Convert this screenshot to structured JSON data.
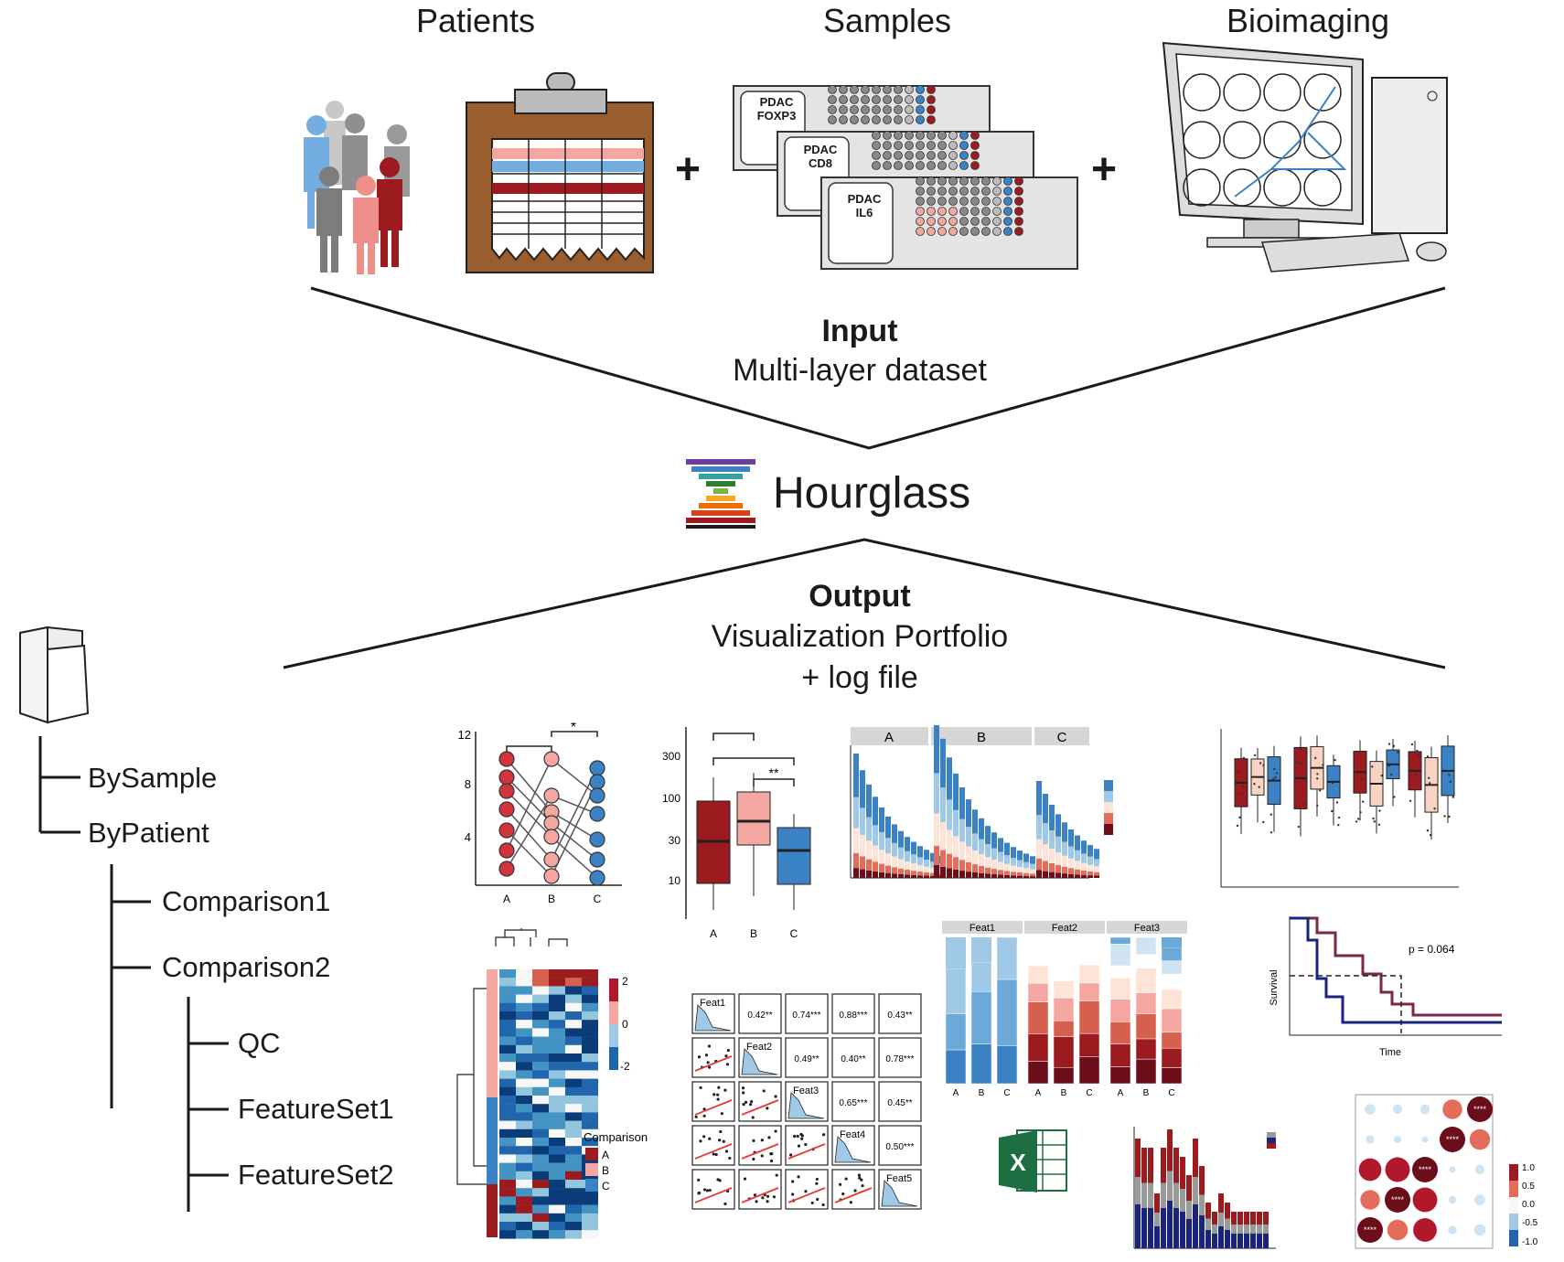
{
  "inputs": {
    "patients_label": "Patients",
    "samples_label": "Samples",
    "bioimaging_label": "Bioimaging",
    "plus": "+"
  },
  "slides": [
    {
      "line1": "PDAC",
      "line2": "FOXP3"
    },
    {
      "line1": "PDAC",
      "line2": "CD8"
    },
    {
      "line1": "PDAC",
      "line2": "IL6"
    }
  ],
  "input_block": {
    "title": "Input",
    "subtitle": "Multi-layer dataset"
  },
  "tool": {
    "name": "Hourglass"
  },
  "output_block": {
    "title": "Output",
    "line1": "Visualization Portfolio",
    "line2": "+ log file"
  },
  "tree": {
    "bysample": "BySample",
    "bypatient": "ByPatient",
    "comparison1": "Comparison1",
    "comparison2": "Comparison2",
    "qc": "QC",
    "featureset1": "FeatureSet1",
    "featureset2": "FeatureSet2"
  },
  "colors": {
    "dark_red": "#9b1b1e",
    "pink": "#f4a6a0",
    "blue": "#3a82c4",
    "light_blue": "#9fc9e6",
    "grey": "#9a9a9a",
    "navy": "#1a237e"
  },
  "mini_plots": {
    "paired": {
      "yticks": [
        "12",
        "8",
        "4"
      ],
      "xticks": [
        "A",
        "B",
        "C"
      ],
      "sig": "*"
    },
    "box": {
      "yticks": [
        "300",
        "100",
        "30",
        "10"
      ],
      "xticks": [
        "A",
        "B",
        "C"
      ],
      "sig": "**"
    },
    "facet_bars": {
      "facets": [
        "A",
        "B",
        "C"
      ]
    },
    "heatmap": {
      "scale": [
        "2",
        "0",
        "-2"
      ],
      "legend_title": "Comparison",
      "legend_items": [
        "A",
        "B",
        "C"
      ]
    },
    "pairs": {
      "features": [
        "Feat1",
        "Feat2",
        "Feat3",
        "Feat4",
        "Feat5"
      ],
      "coefs": [
        "0.42**",
        "0.74***",
        "0.88***",
        "0.43**",
        "0.49**",
        "0.40**",
        "0.78***",
        "0.65***",
        "0.45**",
        "0.50***"
      ]
    },
    "stacked": {
      "facets": [
        "Feat1",
        "Feat2",
        "Feat3"
      ],
      "xticks": [
        "A",
        "B",
        "C"
      ]
    },
    "survival": {
      "ylabel": "Survival",
      "xlabel": "Time",
      "pvalue": "p = 0.064"
    },
    "corr": {
      "scale": [
        "1.0",
        "0.5",
        "0.0",
        "-0.5",
        "-1.0"
      ],
      "star": "****"
    }
  }
}
